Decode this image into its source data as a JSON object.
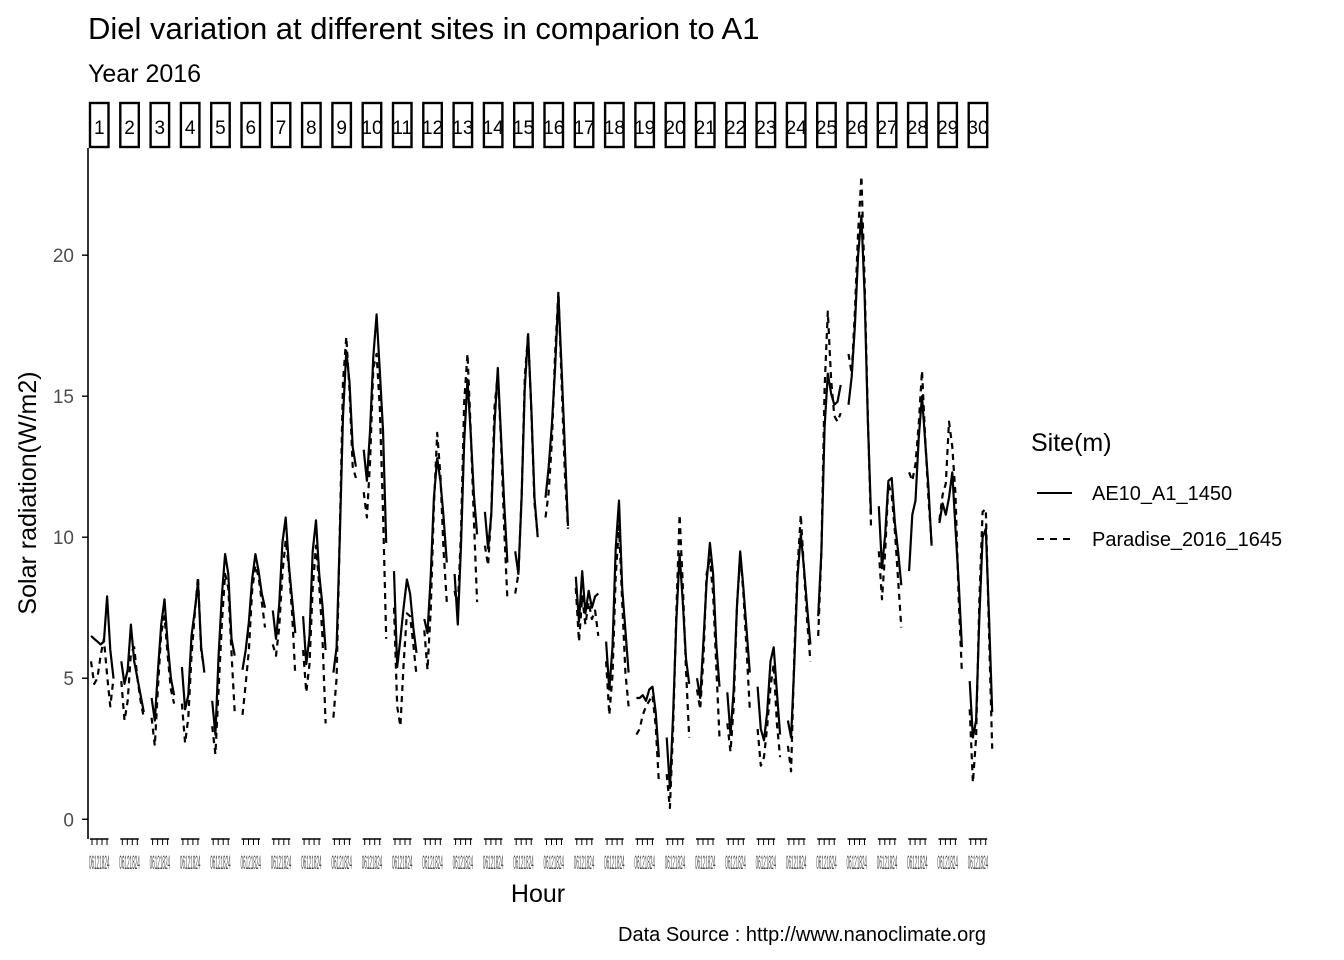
{
  "chart_data": {
    "type": "line",
    "title": "Diel variation at different sites in comparion to A1",
    "subtitle": "Year 2016",
    "caption": "Data Source : http://www.nanoclimate.org",
    "xlabel": "Hour",
    "ylabel": "Solar radiation(W/m2)",
    "ylim": [
      -0.7,
      23.8
    ],
    "yticks": [
      0,
      5,
      10,
      15,
      20
    ],
    "grid": false,
    "legend_position": "right",
    "legend_title": "Site(m)",
    "facet_labels": [
      "1",
      "2",
      "3",
      "4",
      "5",
      "6",
      "7",
      "8",
      "9",
      "10",
      "11",
      "12",
      "13",
      "14",
      "15",
      "16",
      "17",
      "18",
      "19",
      "20",
      "21",
      "22",
      "23",
      "24",
      "25",
      "26",
      "27",
      "28",
      "29",
      "30"
    ],
    "series": [
      {
        "name": "AE10_A1_1450",
        "linetype": "solid",
        "panels": [
          [
            6.5,
            6.4,
            6.3,
            6.2,
            6.3,
            7.9,
            6.0,
            5.0
          ],
          [
            5.6,
            4.8,
            5.3,
            6.9,
            5.6,
            5.0,
            4.4,
            3.8
          ],
          [
            4.3,
            3.5,
            5.3,
            6.9,
            7.8,
            6.2,
            5.0,
            4.4
          ],
          [
            5.4,
            3.9,
            4.4,
            6.5,
            7.4,
            8.4,
            6.1,
            5.2
          ],
          [
            4.2,
            3.0,
            5.8,
            7.9,
            9.4,
            8.7,
            6.4,
            5.8
          ],
          [
            5.3,
            6.0,
            7.0,
            8.5,
            9.4,
            8.8,
            8.0,
            7.5
          ],
          [
            7.4,
            6.4,
            7.6,
            9.8,
            10.7,
            9.0,
            7.8,
            6.6
          ],
          [
            7.2,
            5.5,
            6.5,
            9.5,
            10.6,
            8.7,
            7.6,
            6.0
          ],
          [
            5.2,
            6.1,
            10.0,
            14.3,
            16.6,
            15.5,
            13.2,
            12.5
          ],
          [
            13.1,
            12.0,
            13.8,
            16.4,
            17.9,
            15.9,
            13.8,
            9.8
          ],
          [
            8.8,
            5.4,
            6.4,
            7.5,
            8.5,
            8.0,
            6.8,
            5.9
          ],
          [
            7.1,
            6.6,
            8.6,
            11.4,
            12.8,
            12.0,
            10.7,
            9.1
          ],
          [
            8.7,
            6.9,
            9.7,
            13.4,
            15.6,
            13.7,
            11.5,
            10.1
          ],
          [
            10.9,
            9.6,
            10.8,
            14.0,
            16.0,
            13.6,
            11.2,
            9.1
          ],
          [
            9.5,
            8.7,
            11.4,
            15.3,
            17.2,
            14.6,
            11.4,
            10.0
          ],
          [
            11.4,
            12.5,
            14.0,
            16.0,
            18.6,
            16.0,
            13.2,
            10.4
          ],
          [
            8.6,
            7.0,
            8.8,
            7.3,
            8.1,
            7.5,
            7.9,
            8.0
          ],
          [
            6.3,
            4.6,
            6.1,
            9.6,
            11.3,
            8.2,
            6.7,
            5.2
          ],
          [
            4.3,
            4.3,
            4.4,
            4.2,
            4.6,
            4.7,
            3.8,
            2.2
          ],
          [
            2.9,
            1.1,
            3.7,
            7.0,
            9.4,
            7.7,
            5.7,
            4.8
          ],
          [
            5.0,
            4.3,
            6.3,
            8.4,
            9.8,
            8.7,
            6.2,
            4.7
          ],
          [
            4.5,
            3.0,
            4.6,
            7.5,
            9.5,
            8.2,
            6.7,
            5.2
          ],
          [
            4.7,
            3.2,
            2.8,
            3.8,
            5.6,
            6.1,
            4.5,
            3.0
          ],
          [
            3.5,
            2.9,
            5.5,
            8.6,
            10.1,
            8.9,
            7.5,
            6.2
          ],
          [
            7.2,
            9.5,
            13.9,
            15.8,
            15.1,
            14.7,
            14.8,
            15.4
          ],
          [
            14.7,
            15.7,
            17.5,
            20.0,
            21.4,
            18.6,
            14.2,
            10.8
          ],
          [
            11.1,
            8.9,
            10.1,
            12.0,
            12.1,
            10.5,
            9.5,
            8.3
          ],
          [
            8.8,
            10.8,
            11.3,
            13.5,
            15.0,
            13.4,
            11.8,
            9.7
          ],
          [
            10.5,
            11.2,
            10.8,
            11.4,
            12.3,
            10.3,
            8.4,
            6.1
          ],
          [
            4.9,
            2.9,
            3.5,
            7.1,
            10.0,
            10.3,
            7.2,
            3.8
          ]
        ]
      },
      {
        "name": "Paradise_2016_1645",
        "linetype": "dashed",
        "panels": [
          [
            5.6,
            4.8,
            5.0,
            5.8,
            6.4,
            5.1,
            4.0,
            5.0
          ],
          [
            4.9,
            3.5,
            4.2,
            5.9,
            6.1,
            5.0,
            4.2,
            3.6
          ],
          [
            3.6,
            2.6,
            4.7,
            6.6,
            7.2,
            5.8,
            4.6,
            4.1
          ],
          [
            4.1,
            2.7,
            3.6,
            5.8,
            7.3,
            8.6,
            5.9,
            5.4
          ],
          [
            3.3,
            2.3,
            4.6,
            6.9,
            8.7,
            8.2,
            5.9,
            3.8
          ],
          [
            3.7,
            4.8,
            6.0,
            8.1,
            9.0,
            8.6,
            7.7,
            6.8
          ],
          [
            6.2,
            5.8,
            6.8,
            8.7,
            9.9,
            8.9,
            7.3,
            5.1
          ],
          [
            6.0,
            4.5,
            5.5,
            8.2,
            9.7,
            8.3,
            6.5,
            3.4
          ],
          [
            3.6,
            5.0,
            10.2,
            15.5,
            17.1,
            15.2,
            12.5,
            12.1
          ],
          [
            11.6,
            10.7,
            12.7,
            16.0,
            16.5,
            14.6,
            10.9,
            6.4
          ],
          [
            7.5,
            4.0,
            3.3,
            5.5,
            7.3,
            7.2,
            6.2,
            5.1
          ],
          [
            6.7,
            5.3,
            7.4,
            11.1,
            13.7,
            12.2,
            9.5,
            7.7
          ],
          [
            8.1,
            7.5,
            10.2,
            14.8,
            16.5,
            13.8,
            10.6,
            7.7
          ],
          [
            9.7,
            9.0,
            10.9,
            14.6,
            15.8,
            13.4,
            10.3,
            7.8
          ],
          [
            8.0,
            8.7,
            11.4,
            15.7,
            17.2,
            14.5,
            11.2,
            10.1
          ],
          [
            10.7,
            11.6,
            13.4,
            16.5,
            18.7,
            15.5,
            12.3,
            10.3
          ],
          [
            8.2,
            6.3,
            7.9,
            6.9,
            7.7,
            7.1,
            7.4,
            6.5
          ],
          [
            5.6,
            3.7,
            5.1,
            8.6,
            10.4,
            7.7,
            5.2,
            4.0
          ],
          [
            3.0,
            3.2,
            3.7,
            4.0,
            4.2,
            4.4,
            3.3,
            1.3
          ],
          [
            1.6,
            0.4,
            3.2,
            7.3,
            10.8,
            8.3,
            5.3,
            2.9
          ],
          [
            4.6,
            3.9,
            5.7,
            8.7,
            9.2,
            8.0,
            5.4,
            2.9
          ],
          [
            3.4,
            2.4,
            4.0,
            7.5,
            9.4,
            8.0,
            6.0,
            3.9
          ],
          [
            3.2,
            1.9,
            2.2,
            3.3,
            4.7,
            5.5,
            3.4,
            2.2
          ],
          [
            2.6,
            1.7,
            5.8,
            8.9,
            10.8,
            8.8,
            7.0,
            5.6
          ],
          [
            6.5,
            9.5,
            15.3,
            18.0,
            15.6,
            14.3,
            14.1,
            14.4
          ],
          [
            16.5,
            15.8,
            18.0,
            20.8,
            22.8,
            19.1,
            14.3,
            10.4
          ],
          [
            9.5,
            7.8,
            9.5,
            11.9,
            11.5,
            10.2,
            8.5,
            6.8
          ],
          [
            12.3,
            12.0,
            12.6,
            14.0,
            15.9,
            13.5,
            11.4,
            9.8
          ],
          [
            10.6,
            11.5,
            11.9,
            14.1,
            13.2,
            11.5,
            7.8,
            5.2
          ],
          [
            3.9,
            1.3,
            2.9,
            7.7,
            10.9,
            11.0,
            6.6,
            2.5
          ]
        ]
      }
    ]
  }
}
